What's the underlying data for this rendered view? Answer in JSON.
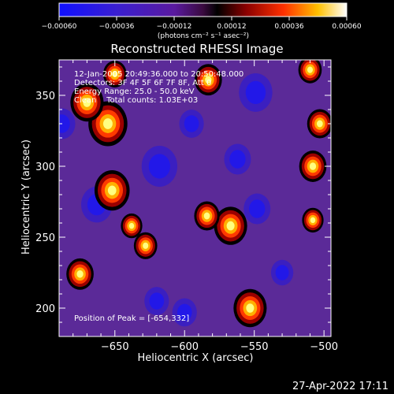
{
  "chart_data": {
    "type": "heatmap",
    "title": "Reconstructed RHESSI Image",
    "xlabel": "Heliocentric X (arcsec)",
    "ylabel": "Heliocentric Y (arcsec)",
    "xlim": [
      -690,
      -495
    ],
    "ylim": [
      180,
      375
    ],
    "x_ticks": [
      -650,
      -600,
      -550,
      -500
    ],
    "x_tick_labels": [
      "−650",
      "−600",
      "−550",
      "−500"
    ],
    "y_ticks": [
      200,
      250,
      300,
      350
    ],
    "y_tick_labels": [
      "200",
      "250",
      "300",
      "350"
    ],
    "colorbar": {
      "range": [
        -0.0006,
        0.0006
      ],
      "ticks": [
        -0.0006,
        -0.00036,
        -0.00012,
        0.00012,
        0.00036,
        0.0006
      ],
      "tick_labels": [
        "−0.00060",
        "−0.00036",
        "−0.00012",
        "0.00012",
        "0.00036",
        "0.00060"
      ],
      "units": "(photons cm⁻² s⁻¹ asec⁻²)",
      "colormap": "blue-purple-red-yellow-white"
    },
    "annotations": [
      "12-Jan-2005 20:49:36.000 to 20:50:48.000",
      "Detectors: 3F 4F 5F 6F 7F 8F, Att 0",
      "Energy Range: 25.0 - 50.0 keV",
      "Clean    Total counts: 1.03E+03"
    ],
    "peak_label": "Position of Peak = [-654,332]",
    "peak_position": [
      -654,
      332
    ],
    "bright_sources": [
      {
        "x": -655,
        "y": 330,
        "level": 1.0
      },
      {
        "x": -670,
        "y": 345,
        "level": 0.85
      },
      {
        "x": -652,
        "y": 283,
        "level": 0.9
      },
      {
        "x": -567,
        "y": 258,
        "level": 0.85
      },
      {
        "x": -584,
        "y": 265,
        "level": 0.65
      },
      {
        "x": -508,
        "y": 300,
        "level": 0.7
      },
      {
        "x": -503,
        "y": 330,
        "level": 0.65
      },
      {
        "x": -553,
        "y": 200,
        "level": 0.85
      },
      {
        "x": -583,
        "y": 361,
        "level": 0.7
      },
      {
        "x": -628,
        "y": 244,
        "level": 0.6
      },
      {
        "x": -638,
        "y": 258,
        "level": 0.55
      },
      {
        "x": -675,
        "y": 224,
        "level": 0.7
      },
      {
        "x": -650,
        "y": 365,
        "level": 0.6
      },
      {
        "x": -508,
        "y": 262,
        "level": 0.55
      },
      {
        "x": -510,
        "y": 368,
        "level": 0.6
      }
    ],
    "dark_sources": [
      {
        "x": -618,
        "y": 300,
        "level": -0.8
      },
      {
        "x": -549,
        "y": 352,
        "level": -0.75
      },
      {
        "x": -663,
        "y": 273,
        "level": -0.7
      },
      {
        "x": -562,
        "y": 305,
        "level": -0.6
      },
      {
        "x": -595,
        "y": 330,
        "level": -0.55
      },
      {
        "x": -620,
        "y": 205,
        "level": -0.55
      },
      {
        "x": -548,
        "y": 270,
        "level": -0.6
      },
      {
        "x": -688,
        "y": 330,
        "level": -0.6
      },
      {
        "x": -600,
        "y": 197,
        "level": -0.55
      },
      {
        "x": -530,
        "y": 225,
        "level": -0.5
      }
    ]
  },
  "footer": {
    "timestamp": "27-Apr-2022 17:11"
  }
}
